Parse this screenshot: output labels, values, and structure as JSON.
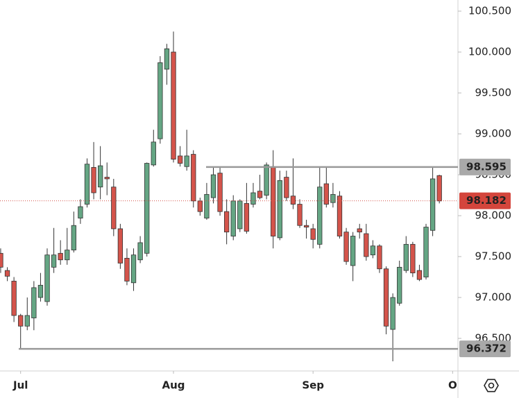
{
  "chart_data": {
    "type": "candlestick",
    "open": [
      97.54,
      97.33,
      97.2,
      96.78,
      96.65,
      96.75,
      97.0,
      96.95,
      97.37,
      97.54,
      97.46,
      97.58,
      97.97,
      98.14,
      98.59,
      98.35,
      98.47,
      98.35,
      97.84,
      97.48,
      97.18,
      97.46,
      97.54,
      98.62,
      98.94,
      99.79,
      100.0,
      98.73,
      98.6,
      98.75,
      98.18,
      97.97,
      98.22,
      98.52,
      98.05,
      97.75,
      97.84,
      98.15,
      98.14,
      98.3,
      98.25,
      98.6,
      97.73,
      98.47,
      98.24,
      98.14,
      97.88,
      97.84,
      97.65,
      98.39,
      98.16,
      98.24,
      97.8,
      97.39,
      97.84,
      97.78,
      97.52,
      97.63,
      97.35,
      96.61,
      96.93,
      97.33,
      97.65,
      97.33,
      97.25,
      97.82,
      98.49
    ],
    "high": [
      97.6,
      97.37,
      97.25,
      96.8,
      97.0,
      97.2,
      97.3,
      97.6,
      97.85,
      97.7,
      97.85,
      98.05,
      98.2,
      98.7,
      98.9,
      98.85,
      98.65,
      98.45,
      97.9,
      97.6,
      97.6,
      97.75,
      98.65,
      99.05,
      99.95,
      100.1,
      100.25,
      98.85,
      99.05,
      98.8,
      98.22,
      98.4,
      98.6,
      98.6,
      98.2,
      98.25,
      98.2,
      98.4,
      98.4,
      98.5,
      98.65,
      98.8,
      98.55,
      98.55,
      98.7,
      98.2,
      97.95,
      97.9,
      98.6,
      98.6,
      98.4,
      98.3,
      97.85,
      97.8,
      97.9,
      97.9,
      97.7,
      97.65,
      97.38,
      97.05,
      97.45,
      97.75,
      97.68,
      97.4,
      97.9,
      98.6,
      98.5
    ],
    "low": [
      97.3,
      97.2,
      96.7,
      96.37,
      96.6,
      96.6,
      96.95,
      96.9,
      97.3,
      97.4,
      97.4,
      97.55,
      97.9,
      98.1,
      98.2,
      98.2,
      98.25,
      97.75,
      97.35,
      97.15,
      97.08,
      97.42,
      97.5,
      98.6,
      98.88,
      99.6,
      98.65,
      98.6,
      98.55,
      98.1,
      98.0,
      97.95,
      98.15,
      98.0,
      97.65,
      97.7,
      97.8,
      97.78,
      98.1,
      98.2,
      98.2,
      97.6,
      97.7,
      98.18,
      98.08,
      97.85,
      97.72,
      97.6,
      97.6,
      98.1,
      98.1,
      97.72,
      97.4,
      97.2,
      97.72,
      97.45,
      97.48,
      97.3,
      96.55,
      96.22,
      96.9,
      97.3,
      97.25,
      97.2,
      97.22,
      97.75,
      98.15
    ],
    "close": [
      97.37,
      97.26,
      96.78,
      96.65,
      96.78,
      97.12,
      97.15,
      97.52,
      97.52,
      97.46,
      97.58,
      97.88,
      98.11,
      98.63,
      98.28,
      98.61,
      98.45,
      97.84,
      97.42,
      97.2,
      97.52,
      97.67,
      98.64,
      98.9,
      99.87,
      100.04,
      98.69,
      98.64,
      98.73,
      98.18,
      98.05,
      98.26,
      98.5,
      98.05,
      97.8,
      98.18,
      98.18,
      97.81,
      98.28,
      98.22,
      98.62,
      97.75,
      98.43,
      98.22,
      98.14,
      97.88,
      97.86,
      97.71,
      98.35,
      98.14,
      98.26,
      97.75,
      97.44,
      97.75,
      97.8,
      97.5,
      97.63,
      97.35,
      96.65,
      97.0,
      97.37,
      97.65,
      97.3,
      97.22,
      97.86,
      98.45,
      98.18
    ],
    "up_color": "#65a684",
    "down_color": "#d4544b",
    "ylim": [
      96.102,
      100.636
    ],
    "yticks": [
      {
        "value": 96.5,
        "label": "96.500"
      },
      {
        "value": 97,
        "label": "97.000"
      },
      {
        "value": 97.5,
        "label": "97.500"
      },
      {
        "value": 98,
        "label": "98.000"
      },
      {
        "value": 98.5,
        "label": "98.500"
      },
      {
        "value": 99,
        "label": "99.000"
      },
      {
        "value": 99.5,
        "label": "99.500"
      },
      {
        "value": 100,
        "label": "100.000"
      },
      {
        "value": 100.5,
        "label": "100.500"
      }
    ],
    "xlim": [
      -0.1,
      68.8
    ],
    "xticks": [
      {
        "value": 3,
        "label": "Jul"
      },
      {
        "value": 26,
        "label": "Aug"
      },
      {
        "value": 47,
        "label": "Sep"
      },
      {
        "value": 68,
        "label": "O"
      }
    ],
    "levels": [
      98.595,
      96.372
    ],
    "last_price": 98.182
  }
}
